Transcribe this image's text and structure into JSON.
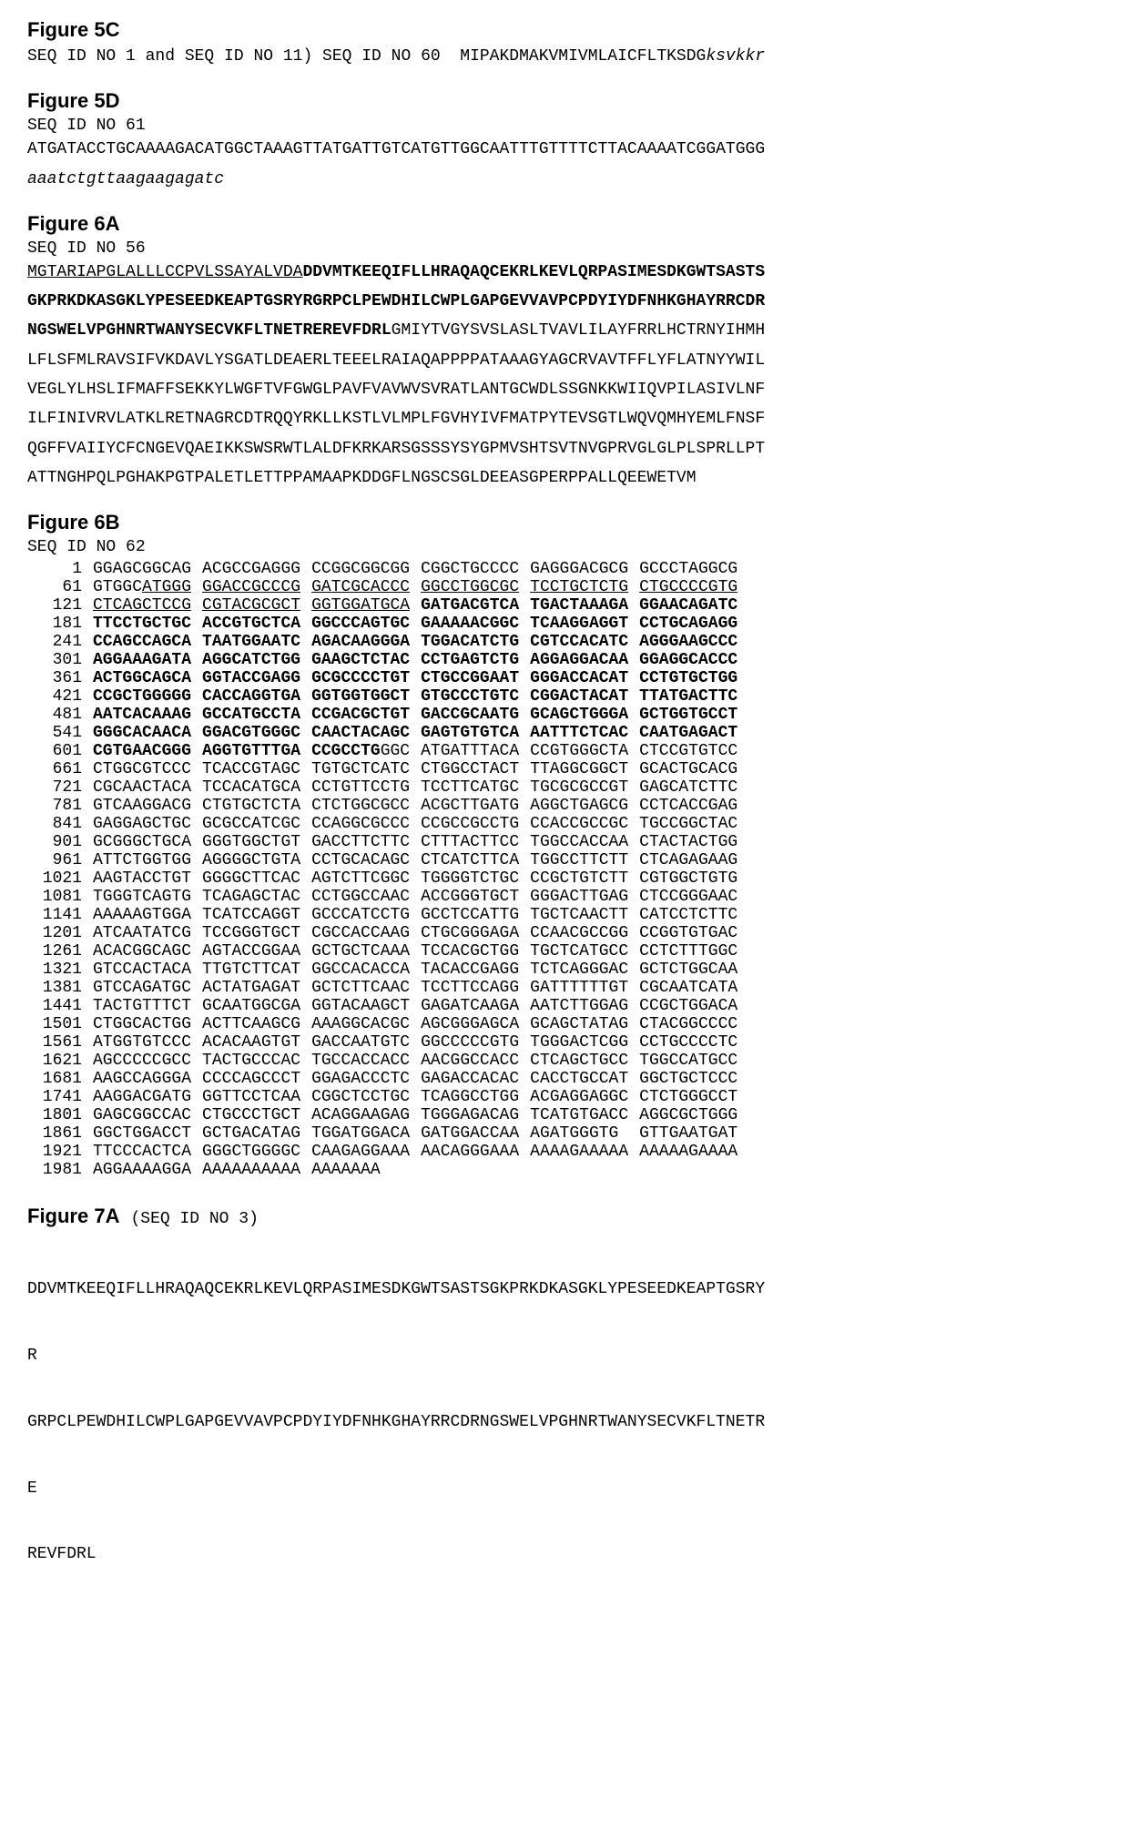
{
  "page": {
    "background_color": "#ffffff",
    "text_color": "#000000",
    "mono_font": "Courier New",
    "heading_font": "Arial",
    "heading_fontsize_pt": 16,
    "mono_fontsize_pt": 13
  },
  "fig5c": {
    "heading": "Figure 5C",
    "line_prefix": "SEQ ID NO 1 and SEQ ID NO 11) SEQ ID NO 60  ",
    "seq_plain": "MIPAKDMAKVMIVMLAICFLTKSDG",
    "seq_italic": "ksvkkr"
  },
  "fig5d": {
    "heading": "Figure 5D",
    "seq_id": "SEQ ID NO 61",
    "line1": "ATGATACCTGCAAAAGACATGGCTAAAGTTATGATTGTCATGTTGGCAATTTGTTTTCTTACAAAATCGGATGGG",
    "line2_italic": "aaatctgttaagaagagatc"
  },
  "fig6a": {
    "heading": "Figure 6A",
    "seq_id": "SEQ ID NO 56",
    "l1_u": "MGTARIAPGLALLLCCPVLSSAYALVDA",
    "l1_b": "DDVMTKEEQIFLLHRAQAQCEKRLKEVLQRPASIMESDKGWTSASTS",
    "l2_b": "GKPRKDKASGKLYPESEEDKEAPTGSRYRGRPCLPEWDHILCWPLGAPGEVVAVPCPDYIYDFNHKGHAYRRCDR",
    "l3_b": "NGSWELVPGHNRTWANYSECVKFLTNETREREVFDRL",
    "l3_p": "GMIYTVGYSVSLASLTVAVLILAYFRRLHCTRNYIHMH",
    "l4": "LFLSFMLRAVSIFVKDAVLYSGATLDEAERLTEEELRAIAQAPPPPATAAAGYAGCRVAVTFFLYFLATNYYWIL",
    "l5": "VEGLYLHSLIFMAFFSEKKYLWGFTVFGWGLPAVFVAVWVSVRATLANTGCWDLSSGNKKWIIQVPILASIVLNF",
    "l6": "ILFINIVRVLATKLRETNAGRCDTRQQYRKLLKSTLVLMPLFGVHYIVFMATPYTEVSGTLWQVQMHYEMLFNSF",
    "l7": "QGFFVAIIYCFCNGEVQAEIKKSWSRWTLALDFKRKARSGSSSYSYGPMVSHTSVTNVGPRVGLGLPLSPRLLPT",
    "l8": "ATTNGHPQLPGHAKPGTPALETLETTPPAMAAPKDDGFLNGSCSGLDEEASGPERPPALLQEEWETVM"
  },
  "fig6b": {
    "heading": "Figure 6B",
    "seq_id": "SEQ ID NO 62",
    "rows": [
      {
        "pos": "1",
        "g": [
          "GGAGCGGCAG",
          "ACGCCGAGGG",
          "CCGGCGGCGG",
          "CGGCTGCCCC",
          "GAGGGACGCG",
          "GCCCTAGGCG"
        ],
        "s": [
          "p",
          "p",
          "p",
          "p",
          "p",
          "p"
        ]
      },
      {
        "pos": "61",
        "g": [
          "",
          "",
          "",
          "",
          "",
          ""
        ],
        "s": [
          "m01",
          "m02",
          "m03",
          "m04",
          "m05",
          "m06"
        ]
      },
      {
        "pos": "121",
        "g": [
          "",
          "",
          "",
          "",
          "",
          ""
        ],
        "s": [
          "m07",
          "m08",
          "m09",
          "m10",
          "m11",
          "m12"
        ]
      },
      {
        "pos": "181",
        "g": [
          "TTCCTGCTGC",
          "ACCGTGCTCA",
          "GGCCCAGTGC",
          "GAAAAACGGC",
          "TCAAGGAGGT",
          "CCTGCAGAGG"
        ],
        "s": [
          "b",
          "b",
          "b",
          "b",
          "b",
          "b"
        ]
      },
      {
        "pos": "241",
        "g": [
          "CCAGCCAGCA",
          "TAATGGAATC",
          "AGACAAGGGA",
          "TGGACATCTG",
          "CGTCCACATC",
          "AGGGAAGCCC"
        ],
        "s": [
          "b",
          "b",
          "b",
          "b",
          "b",
          "b"
        ]
      },
      {
        "pos": "301",
        "g": [
          "AGGAAAGATA",
          "AGGCATCTGG",
          "GAAGCTCTAC",
          "CCTGAGTCTG",
          "AGGAGGACAA",
          "GGAGGCACCC"
        ],
        "s": [
          "b",
          "b",
          "b",
          "b",
          "b",
          "b"
        ]
      },
      {
        "pos": "361",
        "g": [
          "ACTGGCAGCA",
          "GGTACCGAGG",
          "GCGCCCCTGT",
          "CTGCCGGAAT",
          "GGGACCACAT",
          "CCTGTGCTGG"
        ],
        "s": [
          "b",
          "b",
          "b",
          "b",
          "b",
          "b"
        ]
      },
      {
        "pos": "421",
        "g": [
          "CCGCTGGGGG",
          "CACCAGGTGA",
          "GGTGGTGGCT",
          "GTGCCCTGTC",
          "CGGACTACAT",
          "TTATGACTTC"
        ],
        "s": [
          "b",
          "b",
          "b",
          "b",
          "b",
          "b"
        ]
      },
      {
        "pos": "481",
        "g": [
          "AATCACAAAG",
          "GCCATGCCTA",
          "CCGACGCTGT",
          "GACCGCAATG",
          "GCAGCTGGGA",
          "GCTGGTGCCT"
        ],
        "s": [
          "b",
          "b",
          "b",
          "b",
          "b",
          "b"
        ]
      },
      {
        "pos": "541",
        "g": [
          "GGGCACAACA",
          "GGACGTGGGC",
          "CAACTACAGC",
          "GAGTGTGTCA",
          "AATTTCTCAC",
          "CAATGAGACT"
        ],
        "s": [
          "b",
          "b",
          "b",
          "b",
          "b",
          "b"
        ]
      },
      {
        "pos": "601",
        "g": [
          "",
          "",
          "",
          "",
          "",
          ""
        ],
        "s": [
          "m13",
          "m14",
          "m15",
          "m16",
          "m17",
          "m18"
        ]
      },
      {
        "pos": "661",
        "g": [
          "CTGGCGTCCC",
          "TCACCGTAGC",
          "TGTGCTCATC",
          "CTGGCCTACT",
          "TTAGGCGGCT",
          "GCACTGCACG"
        ],
        "s": [
          "p",
          "p",
          "p",
          "p",
          "p",
          "p"
        ]
      },
      {
        "pos": "721",
        "g": [
          "CGCAACTACA",
          "TCCACATGCA",
          "CCTGTTCCTG",
          "TCCTTCATGC",
          "TGCGCGCCGT",
          "GAGCATCTTC"
        ],
        "s": [
          "p",
          "p",
          "p",
          "p",
          "p",
          "p"
        ]
      },
      {
        "pos": "781",
        "g": [
          "GTCAAGGACG",
          "CTGTGCTCTA",
          "CTCTGGCGCC",
          "ACGCTTGATG",
          "AGGCTGAGCG",
          "CCTCACCGAG"
        ],
        "s": [
          "p",
          "p",
          "p",
          "p",
          "p",
          "p"
        ]
      },
      {
        "pos": "841",
        "g": [
          "GAGGAGCTGC",
          "GCGCCATCGC",
          "CCAGGCGCCC",
          "CCGCCGCCTG",
          "CCACCGCCGC",
          "TGCCGGCTAC"
        ],
        "s": [
          "p",
          "p",
          "p",
          "p",
          "p",
          "p"
        ]
      },
      {
        "pos": "901",
        "g": [
          "GCGGGCTGCA",
          "GGGTGGCTGT",
          "GACCTTCTTC",
          "CTTTACTTCC",
          "TGGCCACCAA",
          "CTACTACTGG"
        ],
        "s": [
          "p",
          "p",
          "p",
          "p",
          "p",
          "p"
        ]
      },
      {
        "pos": "961",
        "g": [
          "ATTCTGGTGG",
          "AGGGGCTGTA",
          "CCTGCACAGC",
          "CTCATCTTCA",
          "TGGCCTTCTT",
          "CTCAGAGAAG"
        ],
        "s": [
          "p",
          "p",
          "p",
          "p",
          "p",
          "p"
        ]
      },
      {
        "pos": "1021",
        "g": [
          "AAGTACCTGT",
          "GGGGCTTCAC",
          "AGTCTTCGGC",
          "TGGGGTCTGC",
          "CCGCTGTCTT",
          "CGTGGCTGTG"
        ],
        "s": [
          "p",
          "p",
          "p",
          "p",
          "p",
          "p"
        ]
      },
      {
        "pos": "1081",
        "g": [
          "TGGGTCAGTG",
          "TCAGAGCTAC",
          "CCTGGCCAAC",
          "ACCGGGTGCT",
          "GGGACTTGAG",
          "CTCCGGGAAC"
        ],
        "s": [
          "p",
          "p",
          "p",
          "p",
          "p",
          "p"
        ]
      },
      {
        "pos": "1141",
        "g": [
          "AAAAAGTGGA",
          "TCATCCAGGT",
          "GCCCATCCTG",
          "GCCTCCATTG",
          "TGCTCAACTT",
          "CATCCTCTTC"
        ],
        "s": [
          "p",
          "p",
          "p",
          "p",
          "p",
          "p"
        ]
      },
      {
        "pos": "1201",
        "g": [
          "ATCAATATCG",
          "TCCGGGTGCT",
          "CGCCACCAAG",
          "CTGCGGGAGA",
          "CCAACGCCGG",
          "CCGGTGTGAC"
        ],
        "s": [
          "p",
          "p",
          "p",
          "p",
          "p",
          "p"
        ]
      },
      {
        "pos": "1261",
        "g": [
          "ACACGGCAGC",
          "AGTACCGGAA",
          "GCTGCTCAAA",
          "TCCACGCTGG",
          "TGCTCATGCC",
          "CCTCTTTGGC"
        ],
        "s": [
          "p",
          "p",
          "p",
          "p",
          "p",
          "p"
        ]
      },
      {
        "pos": "1321",
        "g": [
          "GTCCACTACA",
          "TTGTCTTCAT",
          "GGCCACACCA",
          "TACACCGAGG",
          "TCTCAGGGAC",
          "GCTCTGGCAA"
        ],
        "s": [
          "p",
          "p",
          "p",
          "p",
          "p",
          "p"
        ]
      },
      {
        "pos": "1381",
        "g": [
          "GTCCAGATGC",
          "ACTATGAGAT",
          "GCTCTTCAAC",
          "TCCTTCCAGG",
          "GATTTTTTGT",
          "CGCAATCATA"
        ],
        "s": [
          "p",
          "p",
          "p",
          "p",
          "p",
          "p"
        ]
      },
      {
        "pos": "1441",
        "g": [
          "TACTGTTTCT",
          "GCAATGGCGA",
          "GGTACAAGCT",
          "GAGATCAAGA",
          "AATCTTGGAG",
          "CCGCTGGACA"
        ],
        "s": [
          "p",
          "p",
          "p",
          "p",
          "p",
          "p"
        ]
      },
      {
        "pos": "1501",
        "g": [
          "CTGGCACTGG",
          "ACTTCAAGCG",
          "AAAGGCACGC",
          "AGCGGGAGCA",
          "GCAGCTATAG",
          "CTACGGCCCC"
        ],
        "s": [
          "p",
          "p",
          "p",
          "p",
          "p",
          "p"
        ]
      },
      {
        "pos": "1561",
        "g": [
          "ATGGTGTCCC",
          "ACACAAGTGT",
          "GACCAATGTC",
          "GGCCCCCGTG",
          "TGGGACTCGG",
          "CCTGCCCCTC"
        ],
        "s": [
          "p",
          "p",
          "p",
          "p",
          "p",
          "p"
        ]
      },
      {
        "pos": "1621",
        "g": [
          "AGCCCCCGCC",
          "TACTGCCCAC",
          "TGCCACCACC",
          "AACGGCCACC",
          "CTCAGCTGCC",
          "TGGCCATGCC"
        ],
        "s": [
          "p",
          "p",
          "p",
          "p",
          "p",
          "p"
        ]
      },
      {
        "pos": "1681",
        "g": [
          "AAGCCAGGGA",
          "CCCCAGCCCT",
          "GGAGACCCTC",
          "GAGACCACAC",
          "CACCTGCCAT",
          "GGCTGCTCCC"
        ],
        "s": [
          "p",
          "p",
          "p",
          "p",
          "p",
          "p"
        ]
      },
      {
        "pos": "1741",
        "g": [
          "AAGGACGATG",
          "GGTTCCTCAA",
          "CGGCTCCTGC",
          "TCAGGCCTGG",
          "ACGAGGAGGC",
          "CTCTGGGCCT"
        ],
        "s": [
          "p",
          "p",
          "p",
          "p",
          "p",
          "p"
        ]
      },
      {
        "pos": "1801",
        "g": [
          "GAGCGGCCAC",
          "CTGCCCTGCT",
          "ACAGGAAGAG",
          "TGGGAGACAG",
          "TCATGTGACC",
          "AGGCGCTGGG"
        ],
        "s": [
          "p",
          "p",
          "p",
          "p",
          "p",
          "p"
        ]
      },
      {
        "pos": "1861",
        "g": [
          "GGCTGGACCT",
          "GCTGACATAG",
          "TGGATGGACA",
          "GATGGACCAA",
          "AGATGGGTG",
          "GTTGAATGAT"
        ],
        "s": [
          "p",
          "p",
          "p",
          "p",
          "p",
          "p"
        ]
      },
      {
        "pos": "1921",
        "g": [
          "TTCCCACTCA",
          "GGGCTGGGGC",
          "CAAGAGGAAA",
          "AACAGGGAAA",
          "AAAAGAAAAA",
          "AAAAAGAAAA"
        ],
        "s": [
          "p",
          "p",
          "p",
          "p",
          "p",
          "p"
        ]
      },
      {
        "pos": "1981",
        "g": [
          "AGGAAAAGGA",
          "AAAAAAAAAA",
          "AAAAAAA",
          "",
          "",
          ""
        ],
        "s": [
          "p",
          "p",
          "p",
          "p",
          "p",
          "p"
        ]
      }
    ],
    "mixed": {
      "m01": {
        "parts": [
          {
            "t": "GTGGC",
            "s": "p"
          },
          {
            "t": "ATGG",
            "s": "u"
          },
          {
            "t": "G",
            "s": "u"
          }
        ]
      },
      "m02": {
        "parts": [
          {
            "t": "GGACCGCCCG",
            "s": "u"
          }
        ]
      },
      "m03": {
        "parts": [
          {
            "t": "GATCGCACCC",
            "s": "u"
          }
        ]
      },
      "m04": {
        "parts": [
          {
            "t": "GGCCTGGCGC",
            "s": "u"
          }
        ]
      },
      "m05": {
        "parts": [
          {
            "t": "TCCTGCTCTG",
            "s": "u"
          }
        ]
      },
      "m06": {
        "parts": [
          {
            "t": "CTGCCCCGTG",
            "s": "u"
          }
        ]
      },
      "m07": {
        "parts": [
          {
            "t": "CTCAGCTCCG",
            "s": "u"
          }
        ]
      },
      "m08": {
        "parts": [
          {
            "t": "CGTACGCGCT",
            "s": "u"
          }
        ]
      },
      "m09": {
        "parts": [
          {
            "t": "GGTGGATGCA",
            "s": "u"
          }
        ]
      },
      "m10": {
        "parts": [
          {
            "t": "GATGACGTCA",
            "s": "b"
          }
        ]
      },
      "m11": {
        "parts": [
          {
            "t": "TGACTAAAGA",
            "s": "b"
          }
        ]
      },
      "m12": {
        "parts": [
          {
            "t": "GGAACAGATC",
            "s": "b"
          }
        ]
      },
      "m13": {
        "parts": [
          {
            "t": "CGTGAACGGG",
            "s": "b"
          }
        ]
      },
      "m14": {
        "parts": [
          {
            "t": "AGGTGTTTGA",
            "s": "b"
          }
        ]
      },
      "m15": {
        "parts": [
          {
            "t": "CCGCCTG",
            "s": "b"
          },
          {
            "t": "GGC",
            "s": "p"
          }
        ]
      },
      "m16": {
        "parts": [
          {
            "t": "ATGATTTACA",
            "s": "p"
          }
        ]
      },
      "m17": {
        "parts": [
          {
            "t": "CCGTGGGCTA",
            "s": "p"
          }
        ]
      },
      "m18": {
        "parts": [
          {
            "t": "CTCCGTGTCC",
            "s": "p"
          }
        ]
      }
    }
  },
  "fig7a": {
    "heading": "Figure 7A",
    "seq_id_inline": "(SEQ ID NO 3)",
    "l1": "DDVMTKEEQIFLLHRAQAQCEKRLKEVLQRPASIMESDKGWTSASTSGKPRKDKASGKLYPESEEDKEAPTGSRY",
    "l2": "R",
    "l3": "GRPCLPEWDHILCWPLGAPGEVVAVPCPDYIYDFNHKGHAYRRCDRNGSWELVPGHNRTWANYSECVKFLTNETR",
    "l4": "E",
    "l5": "REVFDRL"
  }
}
